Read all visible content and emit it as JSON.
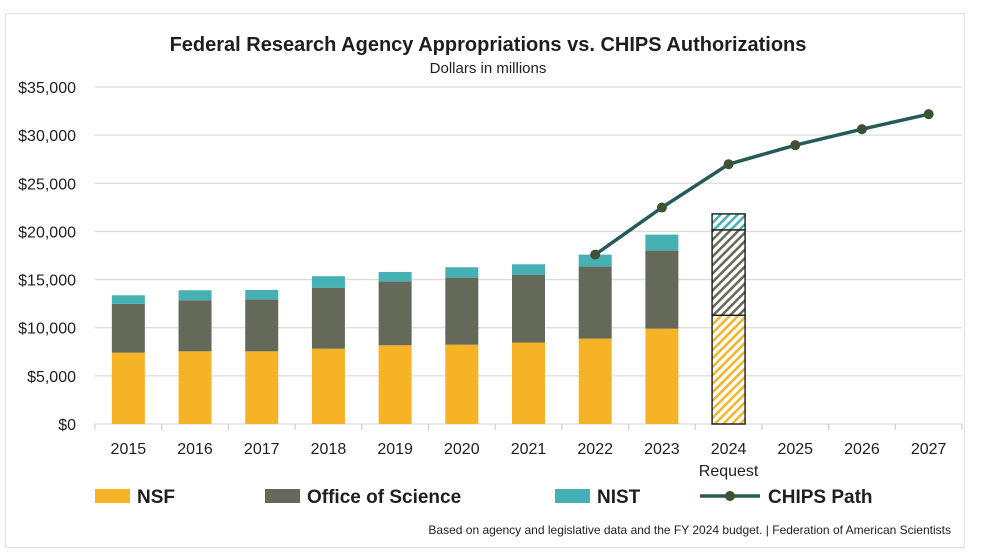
{
  "chart_data": {
    "type": "bar",
    "stacked": true,
    "title": "Federal Research Agency Appropriations vs. CHIPS Authorizations",
    "subtitle": "Dollars in millions",
    "xlabel": "",
    "ylabel": "",
    "ylim": [
      0,
      35000
    ],
    "yticks": [
      0,
      5000,
      10000,
      15000,
      20000,
      25000,
      30000,
      35000
    ],
    "ytick_labels": [
      "$0",
      "$5,000",
      "$10,000",
      "$15,000",
      "$20,000",
      "$25,000",
      "$30,000",
      "$35,000"
    ],
    "grid": true,
    "categories": [
      "2015",
      "2016",
      "2017",
      "2018",
      "2019",
      "2020",
      "2021",
      "2022",
      "2023",
      "2024",
      "2025",
      "2026",
      "2027"
    ],
    "category_sublabels": {
      "2024": "Request"
    },
    "hatched_categories": [
      "2024"
    ],
    "series": [
      {
        "name": "NSF",
        "kind": "bar",
        "color": "#f6b325",
        "values": [
          7410,
          7550,
          7550,
          7820,
          8180,
          8240,
          8450,
          8870,
          9900,
          11290,
          null,
          null,
          null
        ]
      },
      {
        "name": "Office of Science",
        "kind": "bar",
        "color": "#656959",
        "values": [
          5060,
          5300,
          5370,
          6310,
          6610,
          6960,
          7060,
          7480,
          8110,
          8870,
          null,
          null,
          null
        ]
      },
      {
        "name": "NIST",
        "kind": "bar",
        "color": "#46b1b4",
        "values": [
          900,
          1040,
          1000,
          1220,
          1000,
          1080,
          1080,
          1240,
          1660,
          1660,
          null,
          null,
          null
        ]
      },
      {
        "name": "CHIPS Path",
        "kind": "line",
        "color": "#245b58",
        "marker_color": "#3f5133",
        "values": [
          null,
          null,
          null,
          null,
          null,
          null,
          null,
          17590,
          22480,
          26980,
          28960,
          30620,
          32180
        ]
      }
    ],
    "legend_position": "bottom",
    "source_note": "Based on agency and legislative data and the FY 2024 budget. | Federation of American Scientists"
  }
}
